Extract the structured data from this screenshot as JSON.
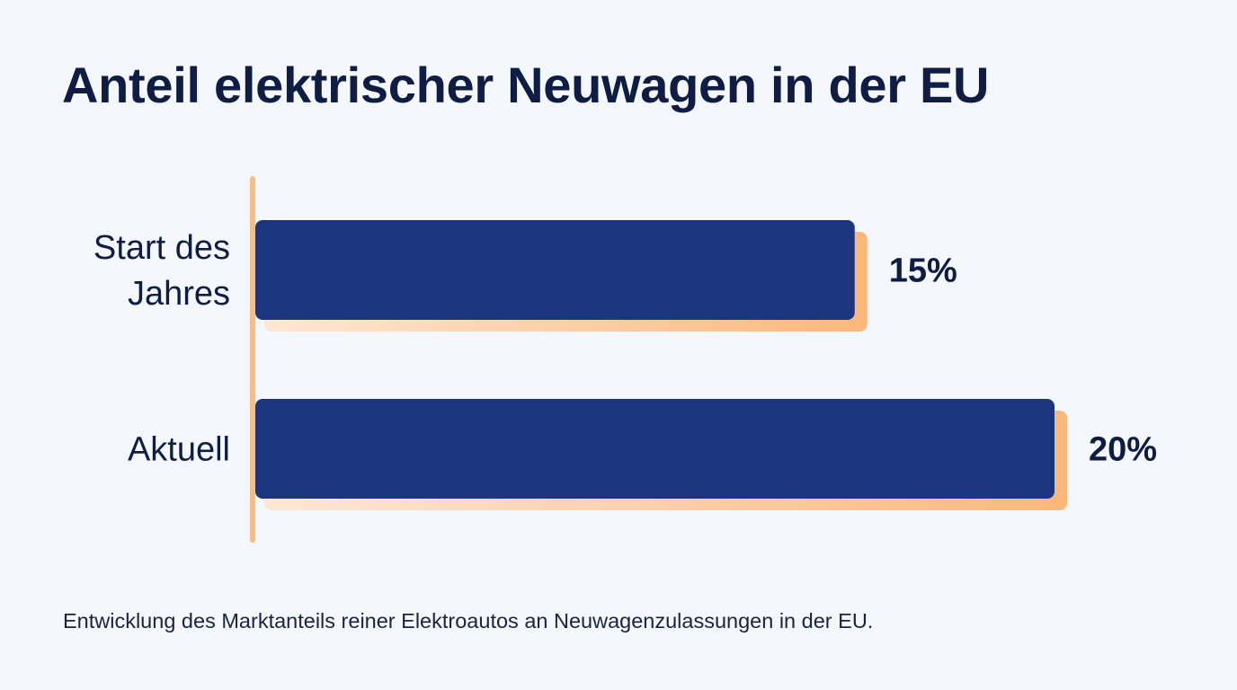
{
  "header": {
    "title": "Anteil elektrischer Neuwagen in der EU"
  },
  "chart_data": {
    "type": "bar",
    "orientation": "horizontal",
    "title": "Anteil elektrischer Neuwagen in der EU",
    "categories": [
      [
        "Start des",
        "Jahres"
      ],
      [
        "Aktuell"
      ]
    ],
    "values": [
      15,
      20
    ],
    "value_labels": [
      "15%",
      "20%"
    ],
    "unit": "%",
    "xlim": [
      0,
      20
    ],
    "grid": false,
    "legend": "none",
    "colors": {
      "bar": "#1c367d",
      "bar_shadow_start": "#fde7d3",
      "bar_shadow_end": "#fbb77c",
      "axis": "#f8bd86",
      "text": "#0f1d45"
    }
  },
  "footer": {
    "caption": "Entwicklung des Marktanteils reiner Elektroautos an Neuwagenzulassungen in der EU."
  }
}
